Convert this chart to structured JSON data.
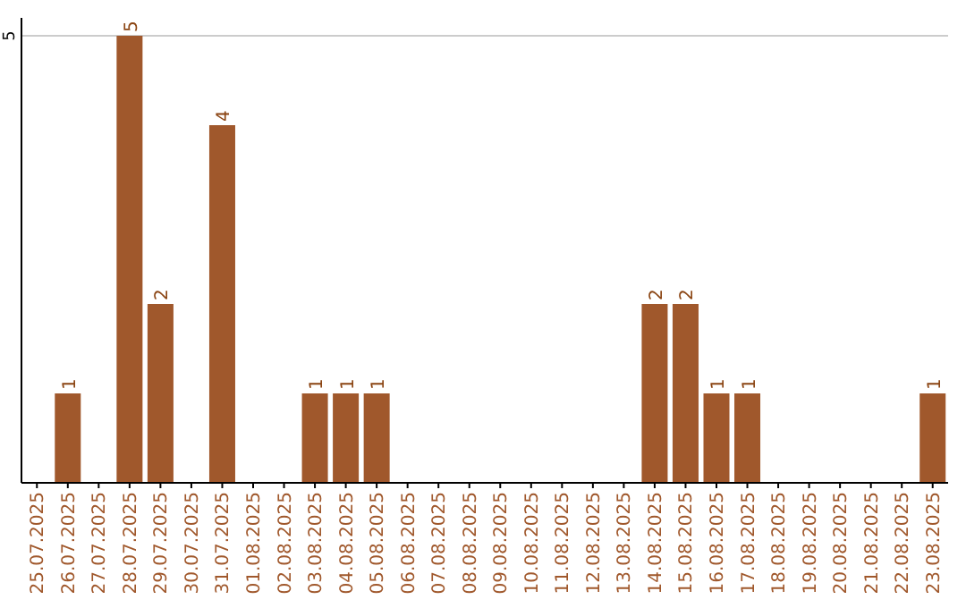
{
  "chart_data": {
    "type": "bar",
    "categories": [
      "25.07.2025",
      "26.07.2025",
      "27.07.2025",
      "28.07.2025",
      "29.07.2025",
      "30.07.2025",
      "31.07.2025",
      "01.08.2025",
      "02.08.2025",
      "03.08.2025",
      "04.08.2025",
      "05.08.2025",
      "06.08.2025",
      "07.08.2025",
      "08.08.2025",
      "09.08.2025",
      "10.08.2025",
      "11.08.2025",
      "12.08.2025",
      "13.08.2025",
      "14.08.2025",
      "15.08.2025",
      "16.08.2025",
      "17.08.2025",
      "18.08.2025",
      "19.08.2025",
      "20.08.2025",
      "21.08.2025",
      "22.08.2025",
      "23.08.2025"
    ],
    "values": [
      0,
      1,
      0,
      5,
      2,
      0,
      4,
      0,
      0,
      1,
      1,
      1,
      0,
      0,
      0,
      0,
      0,
      0,
      0,
      0,
      2,
      2,
      1,
      1,
      0,
      0,
      0,
      0,
      0,
      1
    ],
    "value_labels": [
      null,
      "1",
      null,
      "5",
      "2",
      null,
      "4",
      null,
      null,
      "1",
      "1",
      "1",
      null,
      null,
      null,
      null,
      null,
      null,
      null,
      null,
      "2",
      "2",
      "1",
      "1",
      null,
      null,
      null,
      null,
      null,
      "1"
    ],
    "color": "#a0582c",
    "ylim": [
      0,
      5.2
    ],
    "yticks": [
      5
    ],
    "grid": "y"
  }
}
